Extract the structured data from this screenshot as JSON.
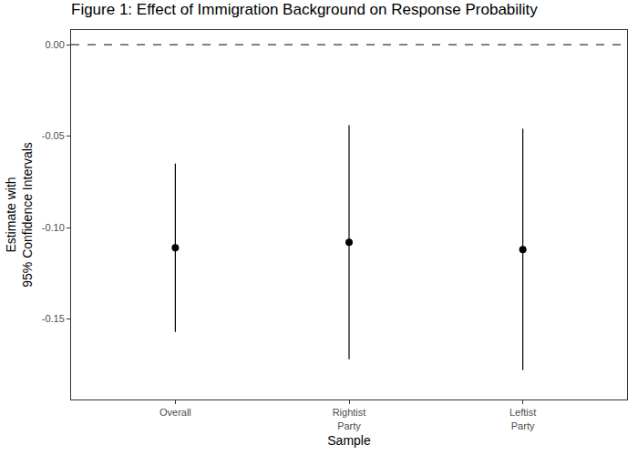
{
  "chart_data": {
    "type": "pointrange",
    "title": "Figure 1: Effect of Immigration Background on Response Probability",
    "x_label": "Sample",
    "y_label": "Estimate with\n95% Confidence Intervals",
    "categories": [
      "Overall",
      "Rightist\nParty",
      "Leftist\nParty"
    ],
    "values": [
      -0.111,
      -0.108,
      -0.112
    ],
    "ci_lower": [
      -0.157,
      -0.172,
      -0.178
    ],
    "ci_upper": [
      -0.065,
      -0.044,
      -0.046
    ],
    "color": "#000000",
    "reference_line": 0,
    "line_style": "dashed",
    "ylim": [
      -0.194,
      0.008
    ],
    "yticks": [
      {
        "value": 0,
        "label": "0.00"
      },
      -0.05,
      {
        "value": -0.1,
        "label": "-0.10"
      },
      -0.15
    ],
    "grid": false
  }
}
